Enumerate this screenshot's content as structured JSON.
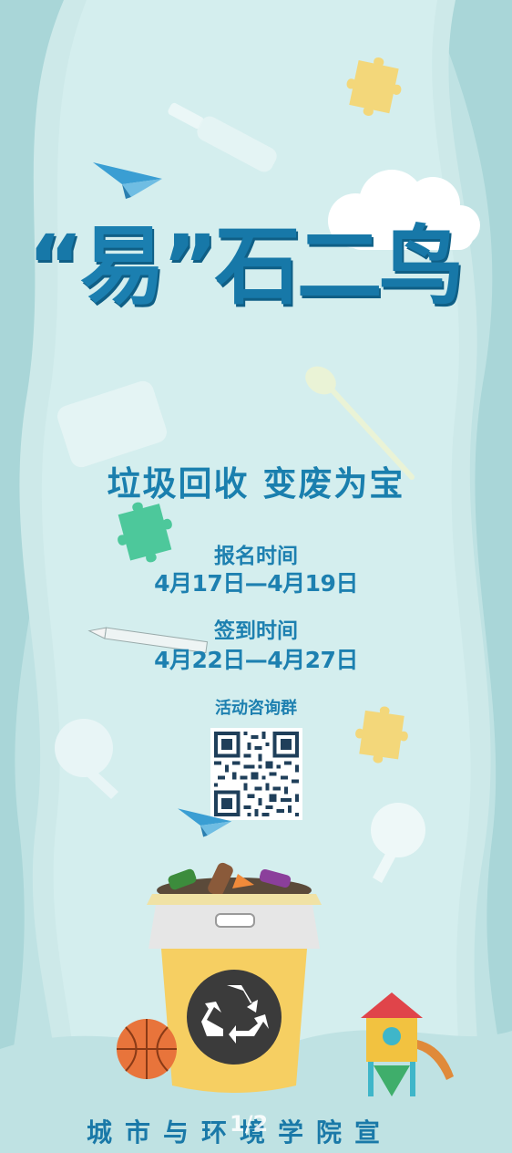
{
  "poster": {
    "title_quote_open": "“",
    "title_quote_word": "易",
    "title_quote_close": "”",
    "title_rest": "石二鸟",
    "subtitle": "垃圾回收  变废为宝",
    "registration_label": "报名时间",
    "registration_dates": "4月17日—4月19日",
    "checkin_label": "签到时间",
    "checkin_dates": "4月22日—4月27日",
    "qr_label": "活动咨询群",
    "footer": "城市与环境学院宣",
    "page_indicator": "1/2"
  },
  "colors": {
    "background": "#cfeaea",
    "title": "#1778a8",
    "text": "#1d80b0",
    "bin_yellow": "#f6cf62",
    "bin_lid": "#e8e8e8",
    "recycle_circle": "#3b3b3b",
    "puzzle_yellow": "#f3d77a",
    "puzzle_green": "#4dc89b"
  },
  "icons": [
    "paper-plane-icon",
    "glass-bottle-icon",
    "puzzle-piece-icon",
    "cloud-icon",
    "plastic-spoon-icon",
    "pencil-icon",
    "light-bulb-icon",
    "qr-code-icon",
    "recycle-bin-icon",
    "recycle-symbol-icon",
    "basketball-icon",
    "playhouse-icon"
  ]
}
